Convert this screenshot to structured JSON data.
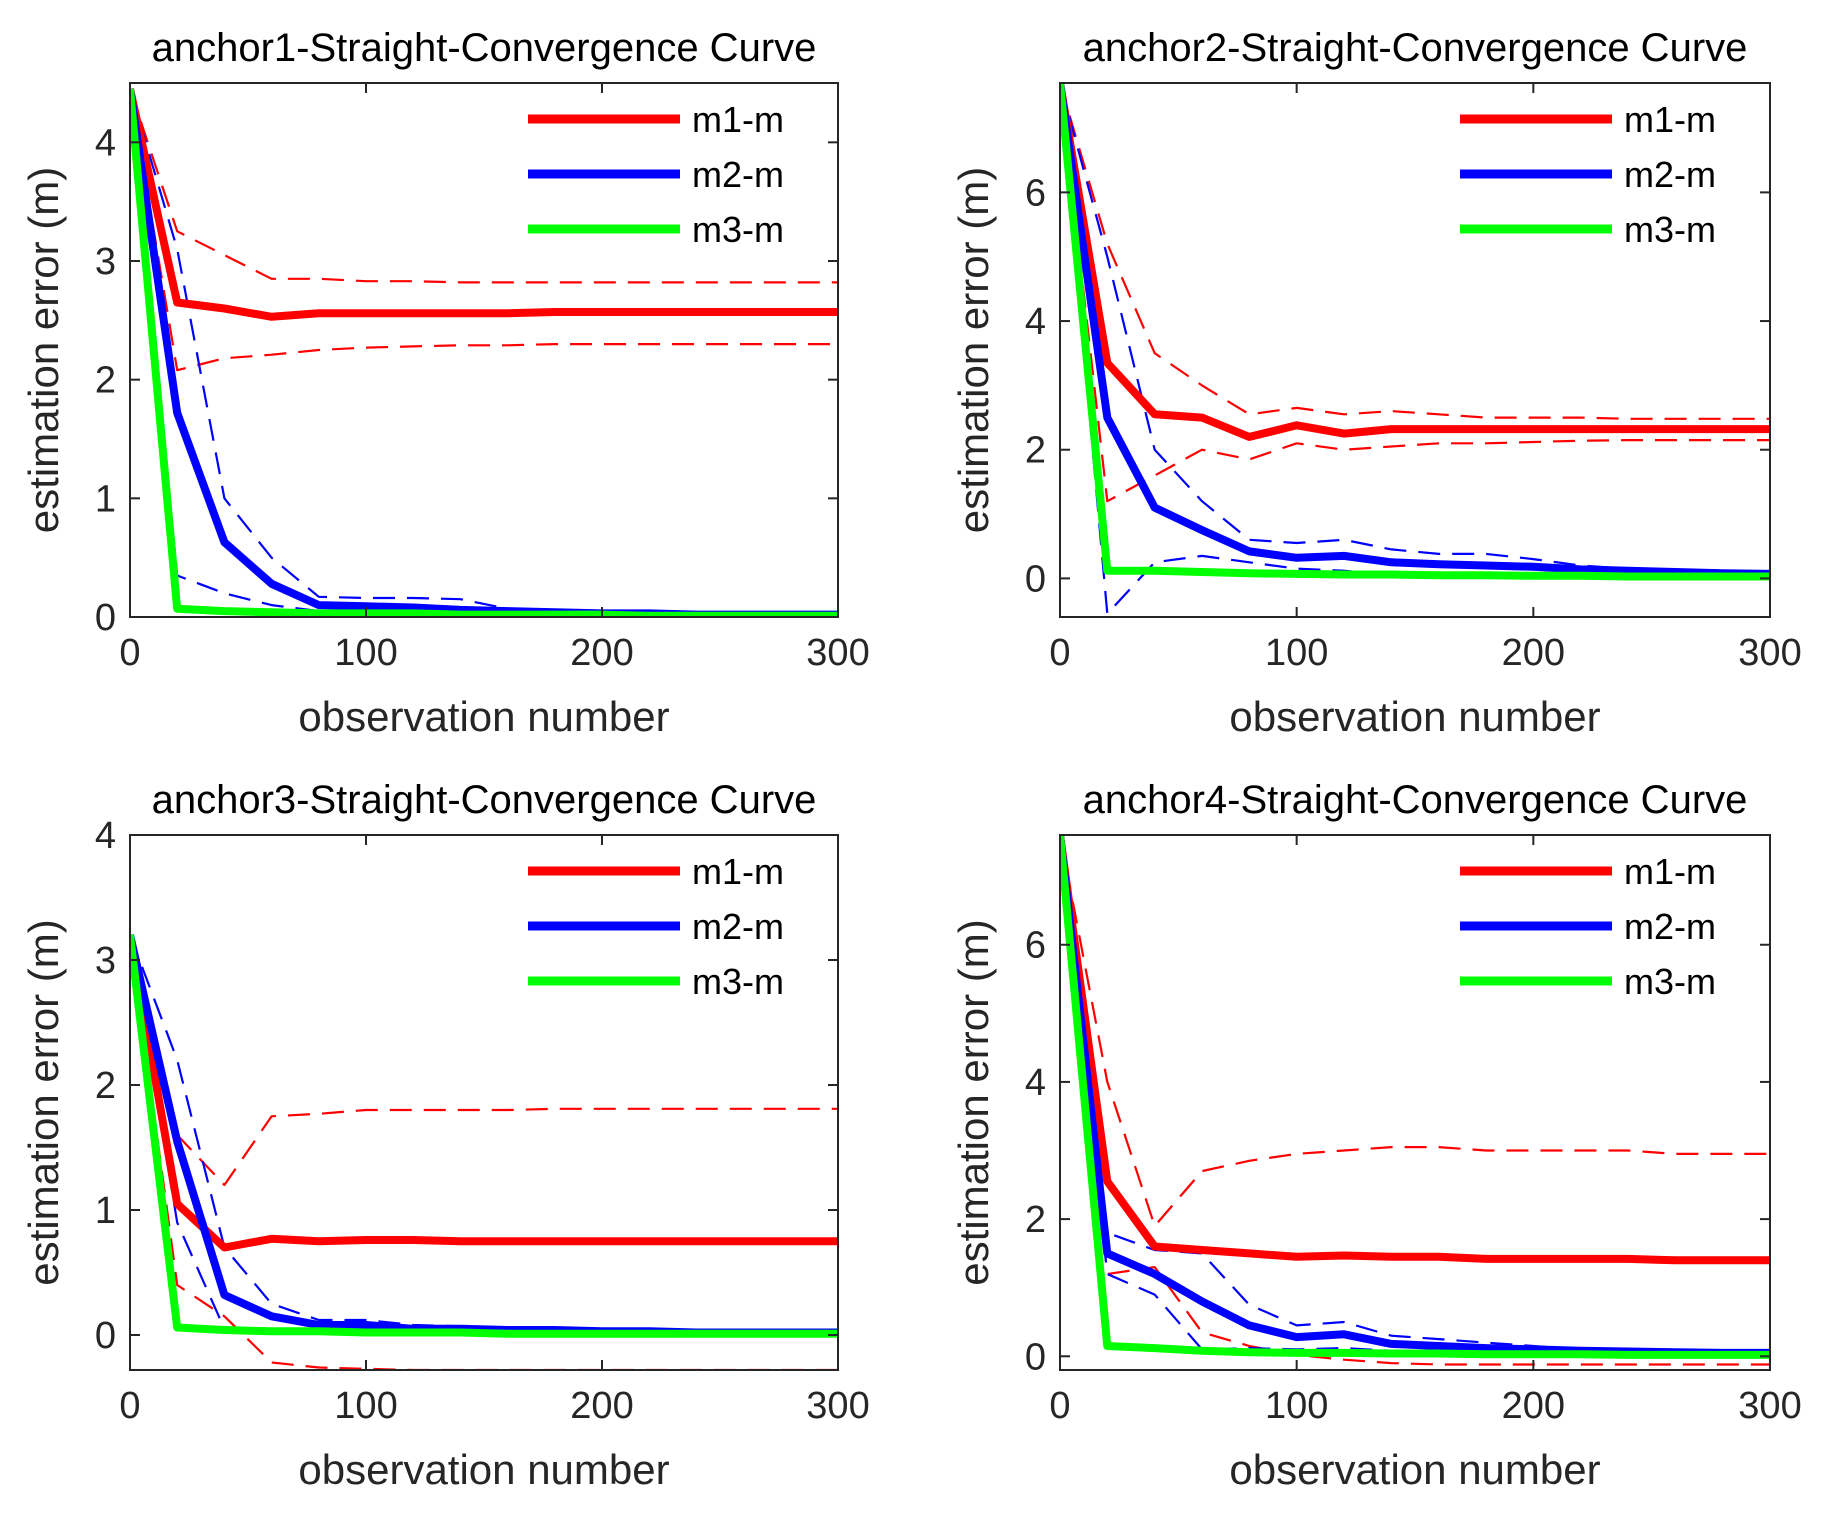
{
  "chart_data": [
    {
      "type": "line",
      "title": "anchor1-Straight-Convergence Curve",
      "xlabel": "observation number",
      "ylabel": "estimation error (m)",
      "xlim": [
        0,
        300
      ],
      "ylim": [
        0,
        4.5
      ],
      "xticks": [
        0,
        100,
        200,
        300
      ],
      "yticks": [
        0,
        1,
        2,
        3,
        4
      ],
      "legend": [
        "m1-m",
        "m2-m",
        "m3-m"
      ],
      "legend_position": "top-right",
      "colors": {
        "m1": "#ff0000",
        "m2": "#0000ff",
        "m3": "#00ff00"
      },
      "x": [
        0,
        20,
        40,
        60,
        80,
        100,
        120,
        140,
        160,
        180,
        200,
        220,
        240,
        260,
        280,
        300
      ],
      "series": [
        {
          "name": "m1-m",
          "style": "solid",
          "values": [
            4.45,
            2.65,
            2.6,
            2.53,
            2.56,
            2.56,
            2.56,
            2.56,
            2.56,
            2.57,
            2.57,
            2.57,
            2.57,
            2.57,
            2.57,
            2.57
          ]
        },
        {
          "name": "m2-m",
          "style": "solid",
          "values": [
            4.45,
            1.72,
            0.63,
            0.28,
            0.1,
            0.09,
            0.08,
            0.06,
            0.05,
            0.04,
            0.03,
            0.03,
            0.02,
            0.02,
            0.02,
            0.02
          ]
        },
        {
          "name": "m3-m",
          "style": "solid",
          "values": [
            4.45,
            0.07,
            0.05,
            0.04,
            0.03,
            0.03,
            0.03,
            0.02,
            0.02,
            0.02,
            0.02,
            0.01,
            0.01,
            0.01,
            0.01,
            0.01
          ]
        },
        {
          "name": "m1-m upper",
          "style": "dashed",
          "values": [
            4.45,
            3.25,
            3.05,
            2.85,
            2.85,
            2.83,
            2.83,
            2.82,
            2.82,
            2.82,
            2.82,
            2.82,
            2.82,
            2.82,
            2.82,
            2.82
          ]
        },
        {
          "name": "m1-m lower",
          "style": "dashed",
          "values": [
            4.45,
            2.08,
            2.18,
            2.21,
            2.25,
            2.27,
            2.28,
            2.29,
            2.29,
            2.3,
            2.3,
            2.3,
            2.3,
            2.3,
            2.3,
            2.3
          ]
        },
        {
          "name": "m2-m upper",
          "style": "dashed",
          "values": [
            4.45,
            3.1,
            1.0,
            0.5,
            0.17,
            0.16,
            0.16,
            0.15,
            0.07,
            0.05,
            0.04,
            0.04,
            0.03,
            0.03,
            0.03,
            0.03
          ]
        },
        {
          "name": "m2-m lower",
          "style": "dashed",
          "values": [
            4.45,
            0.35,
            0.2,
            0.1,
            0.05,
            0.04,
            0.03,
            0.02,
            0.02,
            0.02,
            0.02,
            0.02,
            0.01,
            0.01,
            0.01,
            0.01
          ]
        }
      ]
    },
    {
      "type": "line",
      "title": "anchor2-Straight-Convergence Curve",
      "xlabel": "observation number",
      "ylabel": "estimation error (m)",
      "xlim": [
        0,
        300
      ],
      "ylim": [
        -0.6,
        7.7
      ],
      "xticks": [
        0,
        100,
        200,
        300
      ],
      "yticks": [
        0,
        2,
        4,
        6
      ],
      "legend": [
        "m1-m",
        "m2-m",
        "m3-m"
      ],
      "legend_position": "top-right",
      "colors": {
        "m1": "#ff0000",
        "m2": "#0000ff",
        "m3": "#00ff00"
      },
      "x": [
        0,
        20,
        40,
        60,
        80,
        100,
        120,
        140,
        160,
        180,
        200,
        220,
        240,
        260,
        280,
        300
      ],
      "series": [
        {
          "name": "m1-m",
          "style": "solid",
          "values": [
            7.7,
            3.35,
            2.55,
            2.5,
            2.2,
            2.38,
            2.25,
            2.32,
            2.32,
            2.32,
            2.32,
            2.32,
            2.32,
            2.32,
            2.32,
            2.32
          ]
        },
        {
          "name": "m2-m",
          "style": "solid",
          "values": [
            7.7,
            2.5,
            1.1,
            0.75,
            0.42,
            0.32,
            0.35,
            0.25,
            0.22,
            0.2,
            0.18,
            0.14,
            0.12,
            0.1,
            0.08,
            0.07
          ]
        },
        {
          "name": "m3-m",
          "style": "solid",
          "values": [
            7.7,
            0.12,
            0.12,
            0.1,
            0.08,
            0.07,
            0.06,
            0.06,
            0.05,
            0.05,
            0.04,
            0.04,
            0.03,
            0.03,
            0.03,
            0.03
          ]
        },
        {
          "name": "m1-m upper",
          "style": "dashed",
          "values": [
            7.7,
            5.2,
            3.5,
            3.0,
            2.55,
            2.65,
            2.55,
            2.6,
            2.55,
            2.5,
            2.5,
            2.5,
            2.48,
            2.48,
            2.48,
            2.48
          ]
        },
        {
          "name": "m1-m lower",
          "style": "dashed",
          "values": [
            7.7,
            1.2,
            1.6,
            2.0,
            1.85,
            2.1,
            2.0,
            2.05,
            2.1,
            2.1,
            2.12,
            2.14,
            2.15,
            2.15,
            2.15,
            2.15
          ]
        },
        {
          "name": "m2-m upper",
          "style": "dashed",
          "values": [
            7.7,
            5.0,
            2.0,
            1.2,
            0.6,
            0.55,
            0.6,
            0.45,
            0.38,
            0.38,
            0.3,
            0.2,
            0.15,
            0.12,
            0.1,
            0.08
          ]
        },
        {
          "name": "m2-m lower",
          "style": "dashed",
          "values": [
            7.7,
            -0.55,
            0.25,
            0.35,
            0.25,
            0.15,
            0.12,
            0.05,
            0.06,
            0.05,
            0.05,
            0.05,
            0.04,
            0.04,
            0.04,
            0.04
          ]
        }
      ]
    },
    {
      "type": "line",
      "title": "anchor3-Straight-Convergence Curve",
      "xlabel": "observation number",
      "ylabel": "estimation error (m)",
      "xlim": [
        0,
        300
      ],
      "ylim": [
        -0.28,
        4
      ],
      "xticks": [
        0,
        100,
        200,
        300
      ],
      "yticks": [
        0,
        1,
        2,
        3,
        4
      ],
      "legend": [
        "m1-m",
        "m2-m",
        "m3-m"
      ],
      "legend_position": "top-right",
      "colors": {
        "m1": "#ff0000",
        "m2": "#0000ff",
        "m3": "#00ff00"
      },
      "x": [
        0,
        20,
        40,
        60,
        80,
        100,
        120,
        140,
        160,
        180,
        200,
        220,
        240,
        260,
        280,
        300
      ],
      "series": [
        {
          "name": "m1-m",
          "style": "solid",
          "values": [
            3.2,
            1.05,
            0.7,
            0.77,
            0.75,
            0.76,
            0.76,
            0.75,
            0.75,
            0.75,
            0.75,
            0.75,
            0.75,
            0.75,
            0.75,
            0.75
          ]
        },
        {
          "name": "m2-m",
          "style": "solid",
          "values": [
            3.2,
            1.55,
            0.32,
            0.15,
            0.08,
            0.08,
            0.05,
            0.05,
            0.04,
            0.04,
            0.03,
            0.03,
            0.02,
            0.02,
            0.02,
            0.02
          ]
        },
        {
          "name": "m3-m",
          "style": "solid",
          "values": [
            3.2,
            0.06,
            0.04,
            0.03,
            0.03,
            0.02,
            0.02,
            0.02,
            0.01,
            0.01,
            0.01,
            0.01,
            0.01,
            0.01,
            0.01,
            0.01
          ]
        },
        {
          "name": "m1-m upper",
          "style": "dashed",
          "values": [
            3.2,
            1.6,
            1.2,
            1.75,
            1.77,
            1.8,
            1.8,
            1.8,
            1.8,
            1.81,
            1.81,
            1.81,
            1.81,
            1.81,
            1.81,
            1.81
          ]
        },
        {
          "name": "m1-m lower",
          "style": "dashed",
          "values": [
            3.2,
            0.4,
            0.15,
            -0.22,
            -0.26,
            -0.27,
            -0.28,
            -0.28,
            -0.28,
            -0.28,
            -0.28,
            -0.28,
            -0.28,
            -0.28,
            -0.28,
            -0.28
          ]
        },
        {
          "name": "m2-m upper",
          "style": "dashed",
          "values": [
            3.2,
            2.2,
            0.7,
            0.25,
            0.12,
            0.12,
            0.08,
            0.07,
            0.05,
            0.05,
            0.04,
            0.04,
            0.03,
            0.03,
            0.03,
            0.03
          ]
        },
        {
          "name": "m2-m lower",
          "style": "dashed",
          "values": [
            3.2,
            0.9,
            0.05,
            0.05,
            0.03,
            0.03,
            0.02,
            0.02,
            0.02,
            0.02,
            0.02,
            0.01,
            0.01,
            0.01,
            0.01,
            0.01
          ]
        }
      ]
    },
    {
      "type": "line",
      "title": "anchor4-Straight-Convergence Curve",
      "xlabel": "observation number",
      "ylabel": "estimation error (m)",
      "xlim": [
        0,
        300
      ],
      "ylim": [
        -0.2,
        7.6
      ],
      "xticks": [
        0,
        100,
        200,
        300
      ],
      "yticks": [
        0,
        2,
        4,
        6
      ],
      "legend": [
        "m1-m",
        "m2-m",
        "m3-m"
      ],
      "legend_position": "top-right",
      "colors": {
        "m1": "#ff0000",
        "m2": "#0000ff",
        "m3": "#00ff00"
      },
      "x": [
        0,
        20,
        40,
        60,
        80,
        100,
        120,
        140,
        160,
        180,
        200,
        220,
        240,
        260,
        280,
        300
      ],
      "series": [
        {
          "name": "m1-m",
          "style": "solid",
          "values": [
            7.6,
            2.55,
            1.6,
            1.55,
            1.5,
            1.45,
            1.47,
            1.45,
            1.45,
            1.42,
            1.42,
            1.42,
            1.42,
            1.4,
            1.4,
            1.4
          ]
        },
        {
          "name": "m2-m",
          "style": "solid",
          "values": [
            7.6,
            1.5,
            1.2,
            0.8,
            0.45,
            0.28,
            0.32,
            0.18,
            0.15,
            0.12,
            0.1,
            0.08,
            0.07,
            0.06,
            0.05,
            0.05
          ]
        },
        {
          "name": "m3-m",
          "style": "solid",
          "values": [
            7.6,
            0.15,
            0.12,
            0.08,
            0.06,
            0.05,
            0.05,
            0.04,
            0.04,
            0.03,
            0.03,
            0.03,
            0.02,
            0.02,
            0.02,
            0.02
          ]
        },
        {
          "name": "m1-m upper",
          "style": "dashed",
          "values": [
            7.6,
            4.0,
            1.9,
            2.7,
            2.85,
            2.95,
            3.0,
            3.05,
            3.05,
            3.0,
            3.0,
            3.0,
            3.0,
            2.95,
            2.95,
            2.95
          ]
        },
        {
          "name": "m1-m lower",
          "style": "dashed",
          "values": [
            7.6,
            1.2,
            1.3,
            0.35,
            0.15,
            0.02,
            -0.05,
            -0.1,
            -0.12,
            -0.12,
            -0.12,
            -0.12,
            -0.12,
            -0.12,
            -0.12,
            -0.12
          ]
        },
        {
          "name": "m2-m upper",
          "style": "dashed",
          "values": [
            7.6,
            1.8,
            1.55,
            1.5,
            0.75,
            0.45,
            0.5,
            0.3,
            0.25,
            0.2,
            0.15,
            0.1,
            0.08,
            0.07,
            0.06,
            0.06
          ]
        },
        {
          "name": "m2-m lower",
          "style": "dashed",
          "values": [
            7.6,
            1.2,
            0.9,
            0.1,
            0.12,
            0.1,
            0.12,
            0.08,
            0.06,
            0.05,
            0.05,
            0.04,
            0.04,
            0.03,
            0.03,
            0.03
          ]
        }
      ]
    }
  ]
}
